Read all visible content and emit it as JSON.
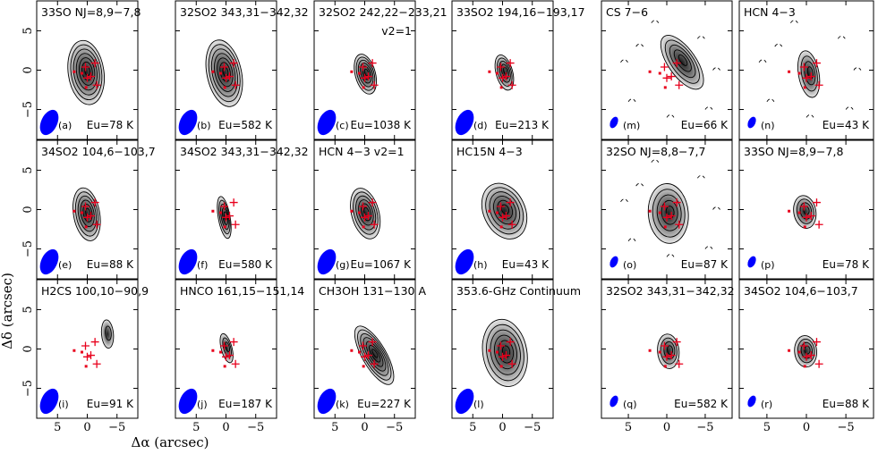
{
  "figure": {
    "xlabel": "Δα (arcsec)",
    "ylabel": "Δδ (arcsec)",
    "x_ticks": [
      "5",
      "0",
      "−5"
    ],
    "y_ticks": [
      "5",
      "0",
      "−5"
    ]
  },
  "colors": {
    "beam": "#0000ff",
    "source_markers": "#e8001c",
    "contour": "#000000"
  },
  "panels": [
    {
      "id": "a",
      "label": "(a)",
      "title": "33SO NJ=8,9−7,8",
      "eu": "Eu=78 K"
    },
    {
      "id": "b",
      "label": "(b)",
      "title": "32SO2 343,31−342,32",
      "eu": "Eu=582 K"
    },
    {
      "id": "c",
      "label": "(c)",
      "title": "32SO2 242,22−233,21",
      "title2": "v2=1",
      "eu": "Eu=1038 K"
    },
    {
      "id": "d",
      "label": "(d)",
      "title": "33SO2 194,16−193,17",
      "eu": "Eu=213 K"
    },
    {
      "id": "m",
      "label": "(m)",
      "title": "CS 7−6",
      "eu": "Eu=66 K"
    },
    {
      "id": "n",
      "label": "(n)",
      "title": "HCN 4−3",
      "eu": "Eu=43 K"
    },
    {
      "id": "e",
      "label": "(e)",
      "title": "34SO2 104,6−103,7",
      "eu": "Eu=88 K"
    },
    {
      "id": "f",
      "label": "(f)",
      "title": "34SO2 343,31−342,32",
      "eu": "Eu=580 K"
    },
    {
      "id": "g",
      "label": "(g)",
      "title": "HCN 4−3 v2=1",
      "eu": "Eu=1067 K"
    },
    {
      "id": "h",
      "label": "(h)",
      "title": "HC15N 4−3",
      "eu": "Eu=43 K"
    },
    {
      "id": "o",
      "label": "(o)",
      "title": "32SO NJ=8,8−7,7",
      "eu": "Eu=87 K"
    },
    {
      "id": "p",
      "label": "(p)",
      "title": "33SO NJ=8,9−7,8",
      "eu": "Eu=78 K"
    },
    {
      "id": "i",
      "label": "(i)",
      "title": "H2CS 100,10−90,9",
      "eu": "Eu=91 K"
    },
    {
      "id": "j",
      "label": "(j)",
      "title": "HNCO 161,15−151,14",
      "eu": "Eu=187 K"
    },
    {
      "id": "k",
      "label": "(k)",
      "title": "CH3OH 131−130 A",
      "eu": "Eu=227 K"
    },
    {
      "id": "l",
      "label": "(l)",
      "title": "353.6-GHz Continuum",
      "eu": ""
    },
    {
      "id": "q",
      "label": "(q)",
      "title": "32SO2 343,31−342,32",
      "eu": "Eu=582 K"
    },
    {
      "id": "r",
      "label": "(r)",
      "title": "34SO2 104,6−103,7",
      "eu": "Eu=88 K"
    }
  ],
  "markers": {
    "crosses": [
      [
        0.3,
        0.4
      ],
      [
        -0.6,
        -0.8
      ],
      [
        -1.3,
        0.9
      ],
      [
        -1.6,
        -1.9
      ],
      [
        0.0,
        -1.0
      ]
    ],
    "squares": [
      [
        2.2,
        -0.2
      ],
      [
        0.9,
        -0.4
      ],
      [
        0.2,
        -2.2
      ]
    ]
  },
  "emission": {
    "a": {
      "cx": 0.2,
      "cy": -0.3,
      "rx": 3.0,
      "ry": 4.1,
      "rot": -8,
      "n": 7
    },
    "b": {
      "cx": 0.3,
      "cy": -0.4,
      "rx": 2.9,
      "ry": 4.3,
      "rot": -12,
      "n": 7
    },
    "c": {
      "cx": -0.1,
      "cy": -0.5,
      "rx": 1.7,
      "ry": 2.6,
      "rot": -15,
      "n": 6
    },
    "d": {
      "cx": -0.3,
      "cy": -0.3,
      "rx": 1.4,
      "ry": 2.3,
      "rot": -15,
      "n": 5
    },
    "m": {
      "cx": -2.0,
      "cy": 1.0,
      "rx": 1.8,
      "ry": 4.0,
      "rot": -35,
      "n": 5
    },
    "n": {
      "cx": -0.3,
      "cy": -0.5,
      "rx": 1.3,
      "ry": 3.0,
      "rot": -10,
      "n": 4
    },
    "e": {
      "cx": 0.1,
      "cy": -0.6,
      "rx": 2.2,
      "ry": 3.4,
      "rot": -10,
      "n": 6
    },
    "f": {
      "cx": 0.3,
      "cy": -1.0,
      "rx": 1.0,
      "ry": 2.7,
      "rot": -10,
      "n": 5
    },
    "g": {
      "cx": -0.1,
      "cy": -0.5,
      "rx": 2.3,
      "ry": 3.3,
      "rot": -15,
      "n": 6
    },
    "h": {
      "cx": -0.3,
      "cy": -0.2,
      "rx": 3.5,
      "ry": 3.7,
      "rot": -25,
      "n": 6
    },
    "o": {
      "cx": -0.2,
      "cy": -0.5,
      "rx": 2.6,
      "ry": 3.8,
      "rot": -5,
      "n": 5
    },
    "p": {
      "cx": 0.2,
      "cy": -0.3,
      "rx": 1.4,
      "ry": 2.1,
      "rot": -10,
      "n": 4
    },
    "i": {
      "cx": -3.4,
      "cy": 1.9,
      "rx": 1.0,
      "ry": 1.8,
      "rot": -5,
      "n": 2
    },
    "j": {
      "cx": -0.1,
      "cy": 0.1,
      "rx": 0.9,
      "ry": 1.9,
      "rot": -15,
      "n": 3
    },
    "k": {
      "cx": -1.6,
      "cy": -0.8,
      "rx": 2.0,
      "ry": 4.2,
      "rot": -30,
      "n": 7
    },
    "l": {
      "cx": -0.4,
      "cy": -0.5,
      "rx": 3.7,
      "ry": 4.3,
      "rot": -10,
      "n": 6
    },
    "q": {
      "cx": -0.2,
      "cy": -0.3,
      "rx": 1.4,
      "ry": 2.2,
      "rot": -5,
      "n": 4
    },
    "r": {
      "cx": 0.1,
      "cy": -0.3,
      "rx": 1.4,
      "ry": 2.0,
      "rot": -5,
      "n": 4
    }
  }
}
